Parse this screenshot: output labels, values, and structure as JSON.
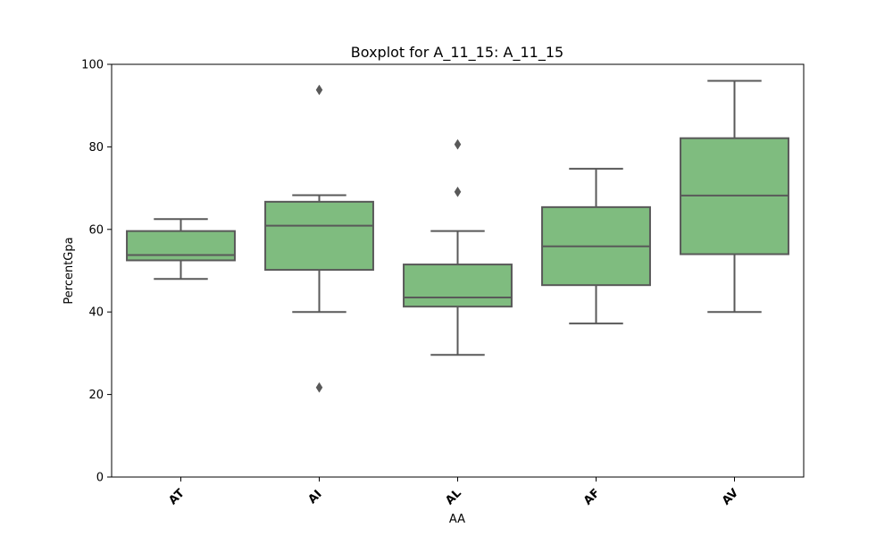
{
  "chart_data": {
    "type": "boxplot",
    "title": "Boxplot for A_11_15: A_11_15",
    "xlabel": "AA",
    "ylabel": "PercentGpa",
    "ylim": [
      0,
      100
    ],
    "yticks": [
      0,
      20,
      40,
      60,
      80,
      100
    ],
    "grid": false,
    "categories": [
      "AT",
      "AI",
      "AL",
      "AF",
      "AV"
    ],
    "box_color": "#7fbc7f",
    "line_color": "#595959",
    "boxes": [
      {
        "category": "AT",
        "whisker_low": 48.0,
        "q1": 52.5,
        "median": 53.8,
        "q3": 59.6,
        "whisker_high": 62.5,
        "outliers": []
      },
      {
        "category": "AI",
        "whisker_low": 40.0,
        "q1": 50.2,
        "median": 60.9,
        "q3": 66.7,
        "whisker_high": 68.3,
        "outliers": [
          93.8,
          21.7
        ]
      },
      {
        "category": "AL",
        "whisker_low": 29.6,
        "q1": 41.3,
        "median": 43.5,
        "q3": 51.5,
        "whisker_high": 59.6,
        "outliers": [
          80.6,
          69.1
        ]
      },
      {
        "category": "AF",
        "whisker_low": 37.2,
        "q1": 46.5,
        "median": 55.9,
        "q3": 65.4,
        "whisker_high": 74.7,
        "outliers": []
      },
      {
        "category": "AV",
        "whisker_low": 40.0,
        "q1": 54.0,
        "median": 68.2,
        "q3": 82.1,
        "whisker_high": 96.0,
        "outliers": []
      }
    ]
  }
}
